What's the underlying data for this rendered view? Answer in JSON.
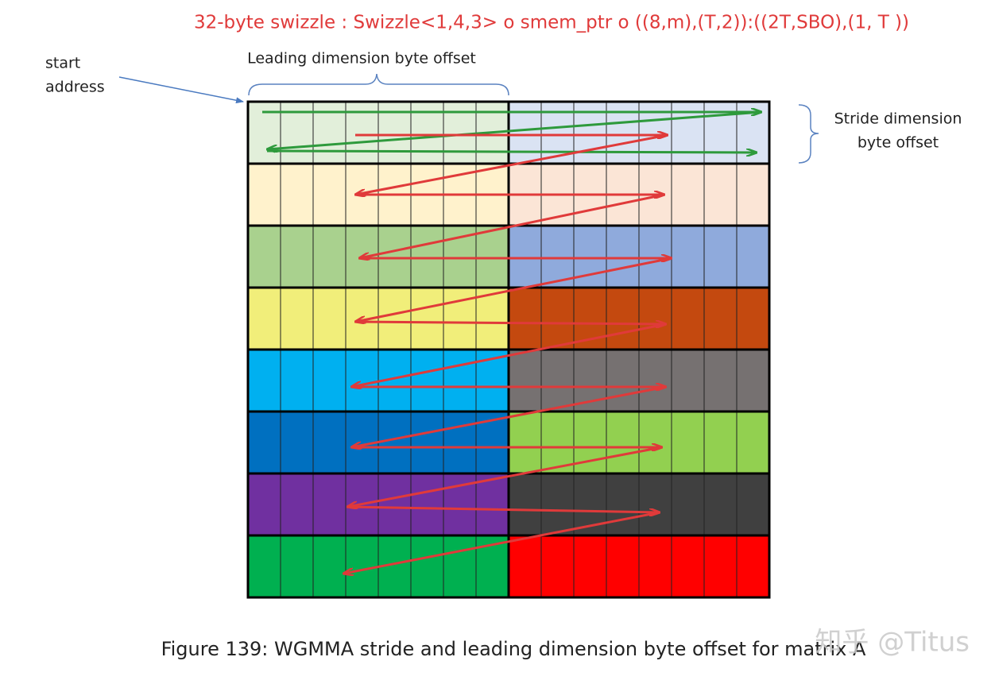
{
  "title": "32-byte swizzle  : Swizzle<1,4,3> o smem_ptr o ((8,m),(T,2)):((2T,SBO),(1, T ))",
  "start_address": [
    "start",
    "address"
  ],
  "leading_dimension": "Leading dimension byte offset",
  "stride_dimension": [
    "Stride dimension",
    "byte offset"
  ],
  "caption": "Figure 139: WGMMA stride and leading dimension byte offset for matrix A",
  "watermark": "知乎 @Titus"
}
